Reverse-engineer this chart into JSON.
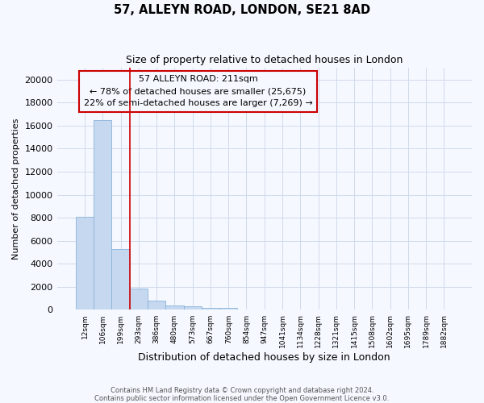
{
  "title1": "57, ALLEYN ROAD, LONDON, SE21 8AD",
  "title2": "Size of property relative to detached houses in London",
  "xlabel": "Distribution of detached houses by size in London",
  "ylabel": "Number of detached properties",
  "annotation_line1": "57 ALLEYN ROAD: 211sqm",
  "annotation_line2": "← 78% of detached houses are smaller (25,675)",
  "annotation_line3": "22% of semi-detached houses are larger (7,269) →",
  "footer_line1": "Contains HM Land Registry data © Crown copyright and database right 2024.",
  "footer_line2": "Contains public sector information licensed under the Open Government Licence v3.0.",
  "bar_color": "#c5d8f0",
  "bar_edge_color": "#8ab4d8",
  "grid_color": "#d0daea",
  "annotation_box_edge": "#cc0000",
  "vline_color": "#cc0000",
  "background_color": "#f5f8ff",
  "categories": [
    "12sqm",
    "106sqm",
    "199sqm",
    "293sqm",
    "386sqm",
    "480sqm",
    "573sqm",
    "667sqm",
    "760sqm",
    "854sqm",
    "947sqm",
    "1041sqm",
    "1134sqm",
    "1228sqm",
    "1321sqm",
    "1415sqm",
    "1508sqm",
    "1602sqm",
    "1695sqm",
    "1789sqm",
    "1882sqm"
  ],
  "values": [
    8050,
    16500,
    5300,
    1850,
    780,
    370,
    280,
    200,
    190,
    0,
    0,
    0,
    0,
    0,
    0,
    0,
    0,
    0,
    0,
    0,
    0
  ],
  "vline_pos": 2.5,
  "ylim_max": 21000,
  "yticks": [
    0,
    2000,
    4000,
    6000,
    8000,
    10000,
    12000,
    14000,
    16000,
    18000,
    20000
  ]
}
